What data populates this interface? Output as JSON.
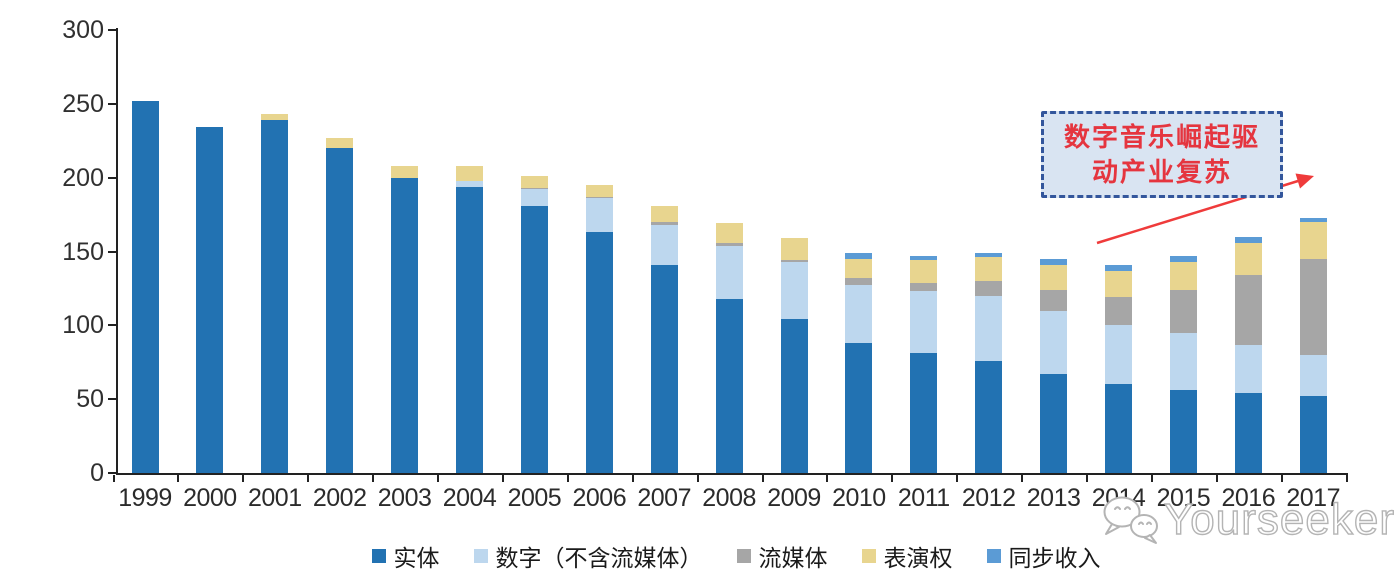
{
  "chart_data": {
    "type": "bar",
    "stacked": true,
    "categories": [
      "1999",
      "2000",
      "2001",
      "2002",
      "2003",
      "2004",
      "2005",
      "2006",
      "2007",
      "2008",
      "2009",
      "2010",
      "2011",
      "2012",
      "2013",
      "2014",
      "2015",
      "2016",
      "2017"
    ],
    "series": [
      {
        "name": "实体",
        "color": "#2272B2",
        "values": [
          252,
          234,
          239,
          220,
          200,
          194,
          181,
          163,
          141,
          118,
          104,
          88,
          81,
          76,
          67,
          60,
          56,
          54,
          52
        ]
      },
      {
        "name": "数字（不含流媒体）",
        "color": "#BDD7EE",
        "values": [
          0,
          0,
          0,
          0,
          0,
          4,
          11,
          23,
          27,
          36,
          39,
          39,
          42,
          44,
          43,
          40,
          39,
          33,
          28
        ]
      },
      {
        "name": "流媒体",
        "color": "#A6A6A6",
        "values": [
          0,
          0,
          0,
          0,
          0,
          0,
          1,
          1,
          2,
          2,
          1,
          5,
          6,
          10,
          14,
          19,
          29,
          47,
          65
        ]
      },
      {
        "name": "表演权",
        "color": "#E8D58F",
        "values": [
          0,
          0,
          4,
          7,
          8,
          10,
          8,
          8,
          11,
          13,
          15,
          13,
          15,
          16,
          17,
          18,
          19,
          22,
          25
        ]
      },
      {
        "name": "同步收入",
        "color": "#5B9BD5",
        "values": [
          0,
          0,
          0,
          0,
          0,
          0,
          0,
          0,
          0,
          0,
          0,
          4,
          3,
          3,
          4,
          4,
          4,
          4,
          3
        ]
      }
    ],
    "ylim": [
      0,
      300
    ],
    "yticks": [
      0,
      50,
      100,
      150,
      200,
      250,
      300
    ],
    "grid": false,
    "legend_position": "bottom"
  },
  "annotation": {
    "line1": "数字音乐崛起驱",
    "line2": "动产业复苏",
    "text_color": "#E5353F",
    "box_fill": "#D9E4F2",
    "box_border": "#33569C",
    "arrow_color": "#EF3B3B"
  },
  "watermark": {
    "text": "Yourseeker",
    "color": "#B4B4B4"
  }
}
